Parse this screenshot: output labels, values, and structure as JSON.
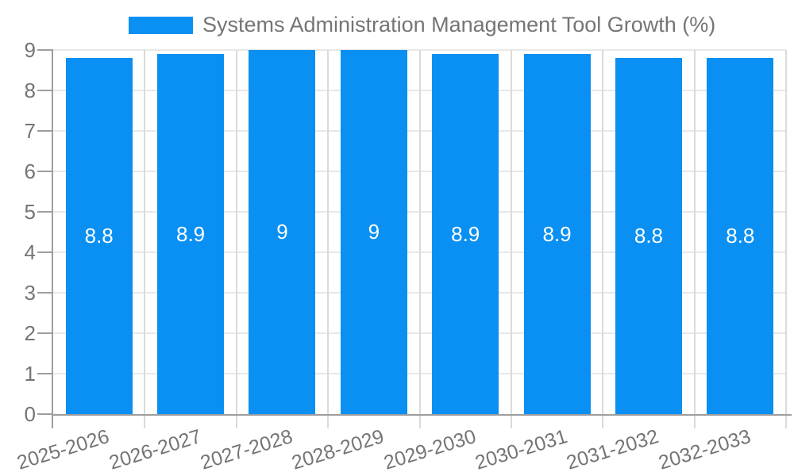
{
  "chart_data": {
    "type": "bar",
    "title": "Systems Administration Management Tool Growth (%)",
    "categories": [
      "2025-2026",
      "2026-2027",
      "2027-2028",
      "2028-2029",
      "2029-2030",
      "2030-2031",
      "2031-2032",
      "2032-2033"
    ],
    "values": [
      8.8,
      8.9,
      9,
      9,
      8.9,
      8.9,
      8.8,
      8.8
    ],
    "value_labels": [
      "8.8",
      "8.9",
      "9",
      "9",
      "8.9",
      "8.9",
      "8.8",
      "8.8"
    ],
    "xlabel": "",
    "ylabel": "",
    "ylim": [
      0,
      9
    ],
    "yticks": [
      0,
      1,
      2,
      3,
      4,
      5,
      6,
      7,
      8,
      9
    ],
    "grid": true,
    "legend_position": "top",
    "x_label_rotation_deg": -17,
    "colors": {
      "bar": "#0a90f2",
      "axis": "#9e9e9e",
      "grid_horizontal": "#e8e8e8",
      "grid_vertical": "#dadada",
      "text": "#757575",
      "value_label": "#ffffff",
      "background": "#ffffff"
    }
  }
}
